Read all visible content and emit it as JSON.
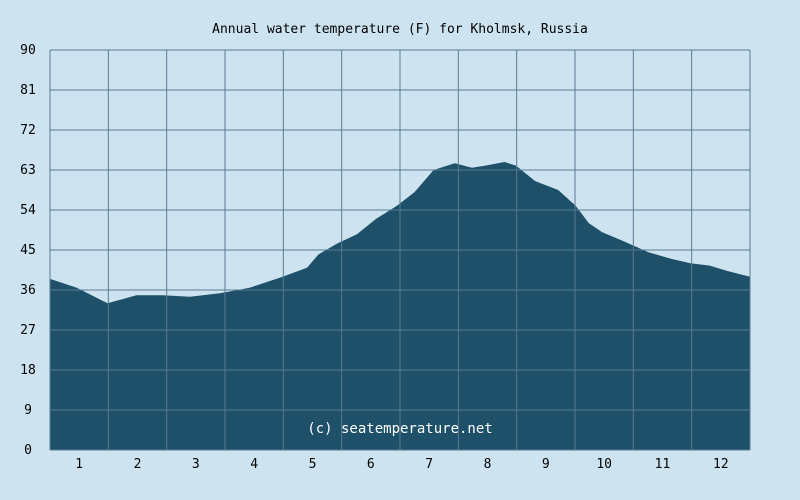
{
  "chart_data": {
    "type": "area",
    "title": "Annual water temperature (F) for Kholmsk, Russia",
    "watermark": "(c) seatemperature.net",
    "xlabel": "",
    "ylabel": "",
    "x_tick_labels": [
      "1",
      "2",
      "3",
      "4",
      "5",
      "6",
      "7",
      "8",
      "9",
      "10",
      "11",
      "12"
    ],
    "y_tick_labels": [
      "0",
      "9",
      "18",
      "27",
      "36",
      "45",
      "54",
      "63",
      "72",
      "81",
      "90"
    ],
    "xlim": [
      1,
      366
    ],
    "ylim": [
      0,
      90
    ],
    "grid": true,
    "legend": "none",
    "colors": {
      "fill": "#1e5069",
      "background": "#cde4f0",
      "grid": "#5b7a92"
    },
    "series": [
      {
        "x": [
          1,
          15,
          31,
          46,
          60,
          74,
          90,
          105,
          121,
          135,
          141,
          151,
          161,
          171,
          182,
          191,
          201,
          212,
          221,
          228,
          238,
          244,
          254,
          266,
          275,
          282,
          289,
          300,
          313,
          325,
          335,
          345,
          354,
          366
        ],
        "values": [
          38.5,
          36.5,
          33,
          34.8,
          34.8,
          34.5,
          35.3,
          36.5,
          38.8,
          41,
          44,
          46.5,
          48.5,
          52,
          55,
          58,
          63,
          64.5,
          63.5,
          64,
          64.8,
          64,
          60.5,
          58.5,
          55,
          51,
          49,
          47,
          44.5,
          43,
          42,
          41.5,
          40.3,
          39
        ]
      }
    ]
  }
}
